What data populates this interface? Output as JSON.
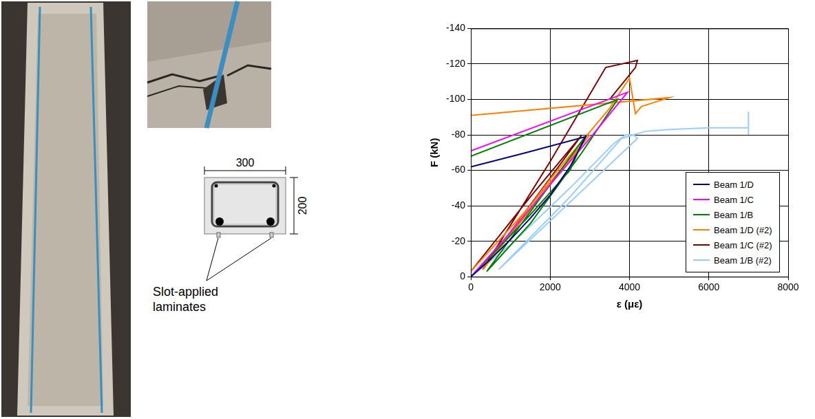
{
  "chart_data": {
    "type": "line",
    "x_label": "ε (με)",
    "y_label": "F (kN)",
    "xlim": [
      0,
      8000
    ],
    "xticks": [
      0,
      2000,
      4000,
      6000,
      8000
    ],
    "ylim": [
      -140,
      0
    ],
    "yticks": [
      -140,
      -120,
      -100,
      -80,
      -60,
      -40,
      -20,
      0
    ],
    "grid": true,
    "legend": "lower right",
    "series": [
      {
        "name": "Beam 1/D",
        "color": "#000080",
        "x": [
          0,
          500,
          1000,
          1500,
          2000,
          2500,
          2900,
          1400,
          0
        ],
        "values": [
          0,
          -10,
          -21,
          -33,
          -46,
          -62,
          -79,
          -70,
          -62
        ]
      },
      {
        "name": "Beam 1/C",
        "color": "#ff00ff",
        "x": [
          0,
          1000,
          2000,
          3000,
          3950,
          0
        ],
        "values": [
          0,
          -25,
          -52,
          -78,
          -104,
          -71
        ]
      },
      {
        "name": "Beam 1/B",
        "color": "#008000",
        "x": [
          0,
          1500,
          2500,
          2850,
          400,
          1500,
          2800,
          3700,
          0
        ],
        "values": [
          0,
          -35,
          -60,
          -78,
          -3,
          -30,
          -70,
          -100,
          -68
        ]
      },
      {
        "name": "Beam 1/D (#2)",
        "color": "#ff8000",
        "x": [
          0,
          1500,
          3000,
          300,
          2000,
          3500,
          4000,
          4150,
          4300,
          5000,
          0
        ],
        "values": [
          -3,
          -40,
          -80,
          -4,
          -55,
          -95,
          -112,
          -92,
          -96,
          -101,
          -91
        ]
      },
      {
        "name": "Beam 1/C (#2)",
        "color": "#800000",
        "x": [
          0,
          1500,
          2800,
          300,
          2000,
          3400,
          4200,
          4150,
          3500
        ],
        "values": [
          -3,
          -45,
          -80,
          -4,
          -65,
          -118,
          -122,
          -118,
          -100
        ]
      },
      {
        "name": "Beam 1/B (#2)",
        "color": "#99ccff",
        "x": [
          0,
          1000,
          2500,
          3600,
          3900,
          4100,
          4200,
          700,
          2500,
          3800,
          4400,
          5000,
          6000,
          7000,
          7000,
          7000
        ],
        "values": [
          0,
          -18,
          -50,
          -75,
          -80,
          -80,
          -78,
          -4,
          -45,
          -78,
          -82,
          -83,
          -84,
          -84,
          -93,
          -80
        ]
      }
    ]
  },
  "cross_section": {
    "width": 300,
    "height": 200,
    "annotation": "Slot-applied laminates"
  }
}
